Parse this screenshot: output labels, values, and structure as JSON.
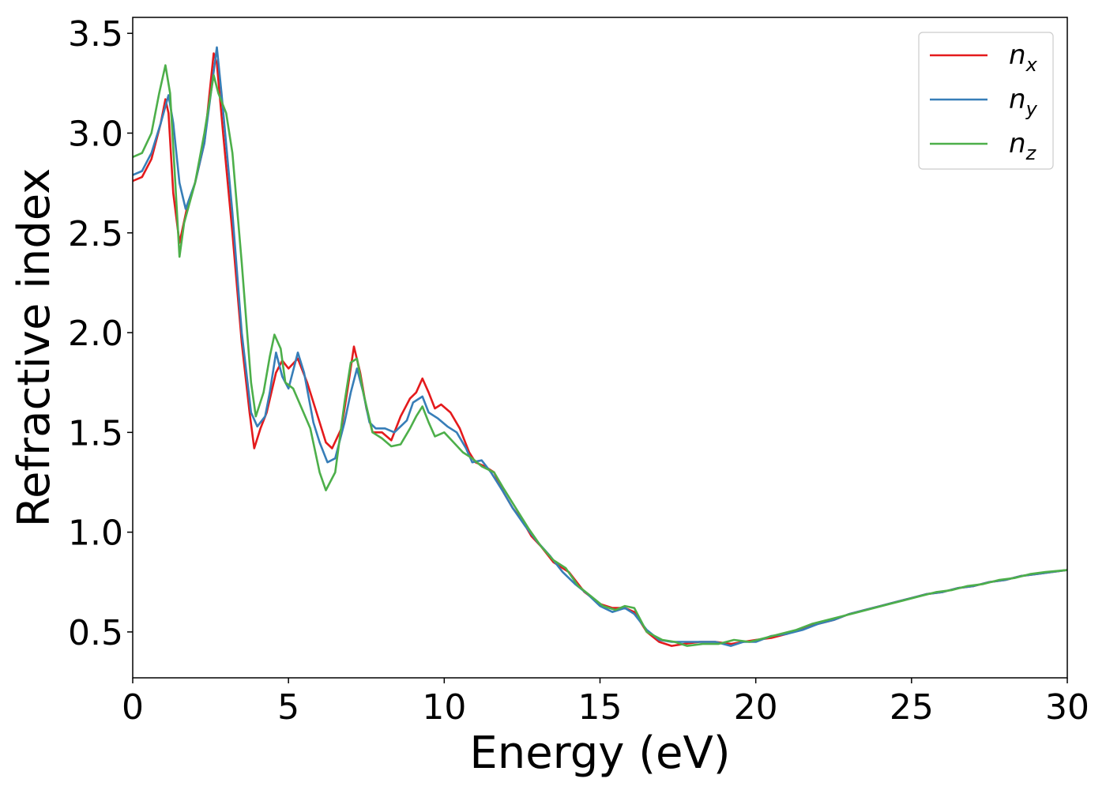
{
  "chart_data": {
    "type": "line",
    "title": "",
    "xlabel": "Energy (eV)",
    "ylabel": "Refractive index",
    "xlim": [
      0,
      30
    ],
    "ylim": [
      0.27,
      3.58
    ],
    "xticks": [
      0,
      5,
      10,
      15,
      20,
      25,
      30
    ],
    "xtick_labels": [
      "0",
      "5",
      "10",
      "15",
      "20",
      "25",
      "30"
    ],
    "yticks": [
      0.5,
      1.0,
      1.5,
      2.0,
      2.5,
      3.0,
      3.5
    ],
    "ytick_labels": [
      "0.5",
      "1.0",
      "1.5",
      "2.0",
      "2.5",
      "3.0",
      "3.5"
    ],
    "grid": false,
    "legend_position": "top-right",
    "series": [
      {
        "name": "n",
        "subscript": "x",
        "color": "#e41a1c",
        "points": [
          [
            0,
            2.76
          ],
          [
            0.3,
            2.78
          ],
          [
            0.6,
            2.87
          ],
          [
            0.9,
            3.05
          ],
          [
            1.05,
            3.17
          ],
          [
            1.15,
            3.1
          ],
          [
            1.3,
            2.7
          ],
          [
            1.5,
            2.45
          ],
          [
            1.75,
            2.63
          ],
          [
            2.0,
            2.75
          ],
          [
            2.3,
            2.95
          ],
          [
            2.6,
            3.4
          ],
          [
            2.7,
            3.35
          ],
          [
            2.9,
            3.0
          ],
          [
            3.2,
            2.5
          ],
          [
            3.5,
            1.95
          ],
          [
            3.75,
            1.6
          ],
          [
            3.9,
            1.42
          ],
          [
            4.1,
            1.52
          ],
          [
            4.3,
            1.6
          ],
          [
            4.6,
            1.8
          ],
          [
            4.8,
            1.86
          ],
          [
            5.0,
            1.82
          ],
          [
            5.3,
            1.87
          ],
          [
            5.6,
            1.75
          ],
          [
            5.9,
            1.6
          ],
          [
            6.2,
            1.45
          ],
          [
            6.4,
            1.42
          ],
          [
            6.7,
            1.52
          ],
          [
            6.9,
            1.72
          ],
          [
            7.1,
            1.93
          ],
          [
            7.3,
            1.8
          ],
          [
            7.5,
            1.62
          ],
          [
            7.7,
            1.5
          ],
          [
            8.0,
            1.5
          ],
          [
            8.3,
            1.46
          ],
          [
            8.6,
            1.58
          ],
          [
            8.9,
            1.67
          ],
          [
            9.1,
            1.7
          ],
          [
            9.3,
            1.77
          ],
          [
            9.5,
            1.7
          ],
          [
            9.7,
            1.62
          ],
          [
            9.9,
            1.64
          ],
          [
            10.2,
            1.6
          ],
          [
            10.5,
            1.52
          ],
          [
            10.8,
            1.4
          ],
          [
            11.0,
            1.35
          ],
          [
            11.3,
            1.33
          ],
          [
            11.6,
            1.3
          ],
          [
            11.9,
            1.2
          ],
          [
            12.2,
            1.12
          ],
          [
            12.5,
            1.06
          ],
          [
            12.8,
            0.98
          ],
          [
            13.1,
            0.93
          ],
          [
            13.5,
            0.85
          ],
          [
            14.0,
            0.8
          ],
          [
            14.5,
            0.7
          ],
          [
            15.0,
            0.64
          ],
          [
            15.4,
            0.62
          ],
          [
            15.8,
            0.62
          ],
          [
            16.1,
            0.6
          ],
          [
            16.5,
            0.5
          ],
          [
            16.9,
            0.45
          ],
          [
            17.3,
            0.43
          ],
          [
            17.7,
            0.44
          ],
          [
            18.2,
            0.45
          ],
          [
            18.7,
            0.45
          ],
          [
            19.2,
            0.44
          ],
          [
            19.6,
            0.45
          ],
          [
            20.0,
            0.46
          ],
          [
            20.5,
            0.47
          ],
          [
            21.0,
            0.49
          ],
          [
            21.5,
            0.52
          ],
          [
            22.0,
            0.54
          ],
          [
            22.5,
            0.56
          ],
          [
            23.0,
            0.59
          ],
          [
            23.5,
            0.61
          ],
          [
            24.0,
            0.63
          ],
          [
            24.5,
            0.65
          ],
          [
            25.0,
            0.67
          ],
          [
            25.5,
            0.69
          ],
          [
            26.0,
            0.7
          ],
          [
            26.5,
            0.72
          ],
          [
            27.0,
            0.73
          ],
          [
            27.5,
            0.75
          ],
          [
            28.0,
            0.76
          ],
          [
            28.5,
            0.78
          ],
          [
            29.0,
            0.79
          ],
          [
            29.5,
            0.8
          ],
          [
            30.0,
            0.81
          ]
        ]
      },
      {
        "name": "n",
        "subscript": "y",
        "color": "#377eb8",
        "points": [
          [
            0,
            2.79
          ],
          [
            0.3,
            2.81
          ],
          [
            0.6,
            2.9
          ],
          [
            0.9,
            3.05
          ],
          [
            1.15,
            3.19
          ],
          [
            1.3,
            3.05
          ],
          [
            1.5,
            2.75
          ],
          [
            1.7,
            2.62
          ],
          [
            2.0,
            2.75
          ],
          [
            2.3,
            2.95
          ],
          [
            2.55,
            3.25
          ],
          [
            2.7,
            3.43
          ],
          [
            2.85,
            3.2
          ],
          [
            3.2,
            2.6
          ],
          [
            3.5,
            2.0
          ],
          [
            3.8,
            1.6
          ],
          [
            4.0,
            1.53
          ],
          [
            4.25,
            1.58
          ],
          [
            4.4,
            1.7
          ],
          [
            4.6,
            1.9
          ],
          [
            4.8,
            1.78
          ],
          [
            5.0,
            1.72
          ],
          [
            5.3,
            1.9
          ],
          [
            5.5,
            1.8
          ],
          [
            5.8,
            1.55
          ],
          [
            6.0,
            1.45
          ],
          [
            6.25,
            1.35
          ],
          [
            6.5,
            1.37
          ],
          [
            6.8,
            1.55
          ],
          [
            7.0,
            1.7
          ],
          [
            7.2,
            1.82
          ],
          [
            7.4,
            1.7
          ],
          [
            7.6,
            1.55
          ],
          [
            7.8,
            1.52
          ],
          [
            8.1,
            1.52
          ],
          [
            8.4,
            1.5
          ],
          [
            8.8,
            1.56
          ],
          [
            9.0,
            1.65
          ],
          [
            9.3,
            1.68
          ],
          [
            9.5,
            1.6
          ],
          [
            9.8,
            1.57
          ],
          [
            10.1,
            1.53
          ],
          [
            10.4,
            1.5
          ],
          [
            10.7,
            1.42
          ],
          [
            10.9,
            1.35
          ],
          [
            11.2,
            1.36
          ],
          [
            11.5,
            1.3
          ],
          [
            11.9,
            1.2
          ],
          [
            12.2,
            1.12
          ],
          [
            12.6,
            1.03
          ],
          [
            13.0,
            0.95
          ],
          [
            13.4,
            0.88
          ],
          [
            13.8,
            0.8
          ],
          [
            14.2,
            0.74
          ],
          [
            14.6,
            0.69
          ],
          [
            15.0,
            0.63
          ],
          [
            15.4,
            0.6
          ],
          [
            15.8,
            0.62
          ],
          [
            16.1,
            0.59
          ],
          [
            16.5,
            0.51
          ],
          [
            16.9,
            0.46
          ],
          [
            17.3,
            0.45
          ],
          [
            17.7,
            0.45
          ],
          [
            18.2,
            0.45
          ],
          [
            18.7,
            0.45
          ],
          [
            19.2,
            0.43
          ],
          [
            19.6,
            0.45
          ],
          [
            20.0,
            0.45
          ],
          [
            20.5,
            0.48
          ],
          [
            21.0,
            0.49
          ],
          [
            21.5,
            0.51
          ],
          [
            22.0,
            0.54
          ],
          [
            22.5,
            0.56
          ],
          [
            23.0,
            0.59
          ],
          [
            23.5,
            0.61
          ],
          [
            24.0,
            0.63
          ],
          [
            24.5,
            0.65
          ],
          [
            25.0,
            0.67
          ],
          [
            25.5,
            0.69
          ],
          [
            26.0,
            0.7
          ],
          [
            26.5,
            0.72
          ],
          [
            27.0,
            0.73
          ],
          [
            27.5,
            0.75
          ],
          [
            28.0,
            0.76
          ],
          [
            28.5,
            0.78
          ],
          [
            29.0,
            0.79
          ],
          [
            29.5,
            0.8
          ],
          [
            30.0,
            0.81
          ]
        ]
      },
      {
        "name": "n",
        "subscript": "z",
        "color": "#4daf4a",
        "points": [
          [
            0,
            2.88
          ],
          [
            0.3,
            2.9
          ],
          [
            0.6,
            3.0
          ],
          [
            0.85,
            3.2
          ],
          [
            1.05,
            3.34
          ],
          [
            1.2,
            3.2
          ],
          [
            1.35,
            2.8
          ],
          [
            1.5,
            2.38
          ],
          [
            1.65,
            2.55
          ],
          [
            2.0,
            2.75
          ],
          [
            2.3,
            3.0
          ],
          [
            2.6,
            3.29
          ],
          [
            2.75,
            3.2
          ],
          [
            3.0,
            3.1
          ],
          [
            3.2,
            2.9
          ],
          [
            3.5,
            2.35
          ],
          [
            3.8,
            1.75
          ],
          [
            3.95,
            1.58
          ],
          [
            4.2,
            1.7
          ],
          [
            4.4,
            1.88
          ],
          [
            4.55,
            1.99
          ],
          [
            4.75,
            1.92
          ],
          [
            4.9,
            1.75
          ],
          [
            5.15,
            1.72
          ],
          [
            5.4,
            1.63
          ],
          [
            5.7,
            1.52
          ],
          [
            6.0,
            1.3
          ],
          [
            6.2,
            1.21
          ],
          [
            6.5,
            1.3
          ],
          [
            6.8,
            1.65
          ],
          [
            7.0,
            1.85
          ],
          [
            7.2,
            1.87
          ],
          [
            7.4,
            1.7
          ],
          [
            7.7,
            1.5
          ],
          [
            8.0,
            1.47
          ],
          [
            8.3,
            1.43
          ],
          [
            8.6,
            1.44
          ],
          [
            8.9,
            1.52
          ],
          [
            9.1,
            1.58
          ],
          [
            9.3,
            1.63
          ],
          [
            9.5,
            1.55
          ],
          [
            9.7,
            1.48
          ],
          [
            10.0,
            1.5
          ],
          [
            10.3,
            1.45
          ],
          [
            10.6,
            1.4
          ],
          [
            10.9,
            1.37
          ],
          [
            11.2,
            1.33
          ],
          [
            11.6,
            1.3
          ],
          [
            11.9,
            1.22
          ],
          [
            12.3,
            1.12
          ],
          [
            12.7,
            1.02
          ],
          [
            13.1,
            0.93
          ],
          [
            13.5,
            0.86
          ],
          [
            13.9,
            0.82
          ],
          [
            14.3,
            0.73
          ],
          [
            14.7,
            0.68
          ],
          [
            15.1,
            0.63
          ],
          [
            15.5,
            0.61
          ],
          [
            15.8,
            0.63
          ],
          [
            16.1,
            0.62
          ],
          [
            16.5,
            0.5
          ],
          [
            17.0,
            0.46
          ],
          [
            17.4,
            0.45
          ],
          [
            17.8,
            0.43
          ],
          [
            18.3,
            0.44
          ],
          [
            18.8,
            0.44
          ],
          [
            19.3,
            0.46
          ],
          [
            19.8,
            0.45
          ],
          [
            20.3,
            0.47
          ],
          [
            20.8,
            0.49
          ],
          [
            21.3,
            0.51
          ],
          [
            21.8,
            0.54
          ],
          [
            22.3,
            0.56
          ],
          [
            22.8,
            0.58
          ],
          [
            23.3,
            0.6
          ],
          [
            23.8,
            0.62
          ],
          [
            24.3,
            0.64
          ],
          [
            24.8,
            0.66
          ],
          [
            25.3,
            0.68
          ],
          [
            25.8,
            0.7
          ],
          [
            26.3,
            0.71
          ],
          [
            26.8,
            0.73
          ],
          [
            27.3,
            0.74
          ],
          [
            27.8,
            0.76
          ],
          [
            28.3,
            0.77
          ],
          [
            28.8,
            0.79
          ],
          [
            29.3,
            0.8
          ],
          [
            30.0,
            0.81
          ]
        ]
      }
    ]
  }
}
